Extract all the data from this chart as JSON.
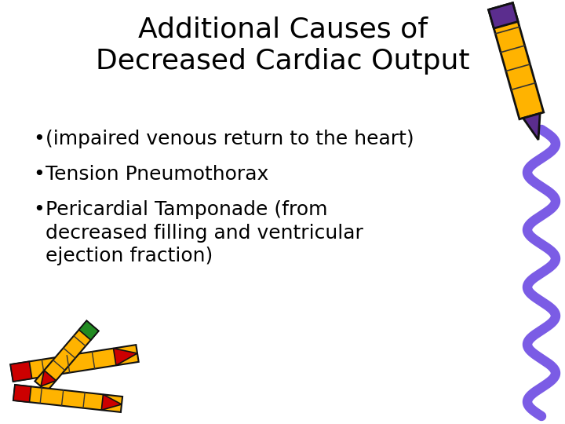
{
  "title_line1": "Additional Causes of",
  "title_line2": "Decreased Cardiac Output",
  "bullet_points": [
    "(impaired venous return to the heart)",
    "Tension Pneumothorax",
    "Pericardial Tamponade (from\ndecreased filling and ventricular\nejection fraction)"
  ],
  "background_color": "#ffffff",
  "text_color": "#000000",
  "title_fontsize": 26,
  "bullet_fontsize": 18,
  "font_family": "Comic Sans MS",
  "crayon_top_right": {
    "body_color": "#FFB300",
    "stripe_color": "#E6A000",
    "band_color": "#5B2D8E",
    "tip_color": "#5B2D8E",
    "outline_color": "#111111"
  },
  "wave_color": "#7B5CE5",
  "wave_linewidth": 9,
  "crayon_bl_body": "#FFB300",
  "crayon_bl_tip1": "#CC0000",
  "crayon_bl_cap1": "#228B22",
  "crayon_bl_tip2": "#CC0000",
  "crayon_bl_cap2": "#228B22"
}
